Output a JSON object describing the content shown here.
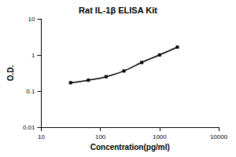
{
  "chart_data": {
    "type": "line",
    "title": "Rat IL-1β ELISA Kit",
    "x_label": "Concentration(pg/ml)",
    "y_label": "O.D.",
    "x": [
      31.25,
      62.5,
      125,
      250,
      500,
      1000,
      2000
    ],
    "values": [
      0.17,
      0.2,
      0.25,
      0.36,
      0.62,
      1.0,
      1.65
    ],
    "color": "#000000",
    "marker": "square",
    "line_style": "solid",
    "log": true,
    "grid": false,
    "xlim": [
      10,
      10000
    ],
    "xticks": [
      10,
      100,
      1000,
      10000
    ],
    "ylim": [
      0.01,
      10
    ],
    "yticks": [
      0.01,
      0.1,
      1,
      10
    ]
  }
}
